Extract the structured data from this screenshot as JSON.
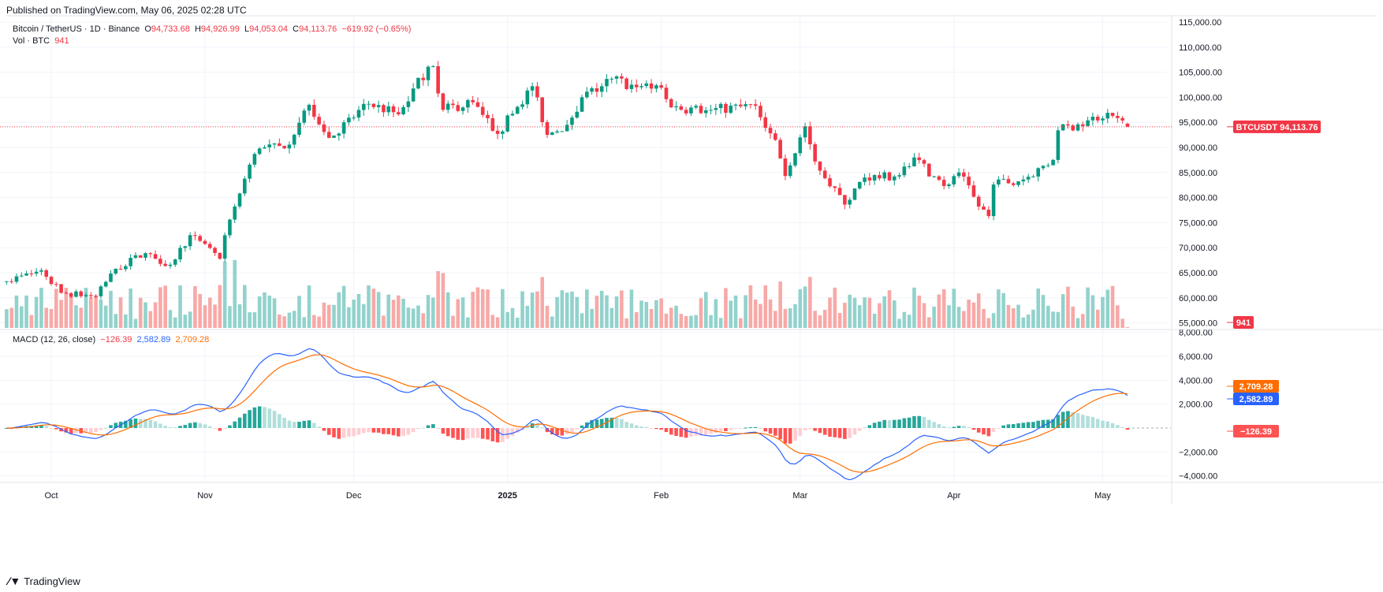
{
  "header": {
    "published": "Published on TradingView.com, May 06, 2025 02:28 UTC"
  },
  "legend": {
    "symbol": "Bitcoin / TetherUS · 1D · Binance",
    "o_label": "O",
    "o": "94,733.68",
    "h_label": "H",
    "h": "94,926.99",
    "l_label": "L",
    "l": "94,053.04",
    "c_label": "C",
    "c": "94,113.76",
    "change": "−619.92 (−0.65%)",
    "vol_label": "Vol · BTC",
    "vol": "941",
    "macd_label": "MACD (12, 26, close)",
    "macd_hist": "−126.39",
    "macd_line": "2,582.89",
    "macd_signal": "2,709.28"
  },
  "price_tag": {
    "symbol": "BTCUSDT",
    "value": "94,113.76"
  },
  "volume_tag": "941",
  "macd_tags": {
    "signal": "2,709.28",
    "macd": "2,582.89",
    "hist": "−126.39"
  },
  "colors": {
    "up": "#089981",
    "down": "#f23645",
    "vol_up": "#92d2cc",
    "vol_down": "#f7a9a7",
    "macd": "#2962ff",
    "signal": "#ff6d00"
  },
  "footer": {
    "brand": "TradingView"
  },
  "chart_data": {
    "type": "candlestick",
    "title": "Bitcoin / TetherUS · 1D · Binance",
    "price_axis": {
      "ticks": [
        "115,000.00",
        "110,000.00",
        "105,000.00",
        "100,000.00",
        "95,000.00",
        "90,000.00",
        "85,000.00",
        "80,000.00",
        "75,000.00",
        "70,000.00",
        "65,000.00",
        "60,000.00",
        "55,000.00"
      ]
    },
    "macd_axis": {
      "ticks": [
        "8,000.00",
        "6,000.00",
        "4,000.00",
        "2,000.00",
        "−2,000.00",
        "−4,000.00"
      ]
    },
    "x_ticks": [
      {
        "label": "Oct",
        "date": "2024-10-01"
      },
      {
        "label": "Nov",
        "date": "2024-11-01"
      },
      {
        "label": "Dec",
        "date": "2024-12-01"
      },
      {
        "label": "2025",
        "date": "2025-01-01"
      },
      {
        "label": "Feb",
        "date": "2025-02-01"
      },
      {
        "label": "Mar",
        "date": "2025-03-01"
      },
      {
        "label": "Apr",
        "date": "2025-04-01"
      },
      {
        "label": "May",
        "date": "2025-05-01"
      }
    ],
    "close_anchors": [
      [
        "2024-09-22",
        63300
      ],
      [
        "2024-09-29",
        65500
      ],
      [
        "2024-10-03",
        61000
      ],
      [
        "2024-10-10",
        60300
      ],
      [
        "2024-10-14",
        65800
      ],
      [
        "2024-10-20",
        68900
      ],
      [
        "2024-10-25",
        66600
      ],
      [
        "2024-10-29",
        72500
      ],
      [
        "2024-11-04",
        67800
      ],
      [
        "2024-11-06",
        75600
      ],
      [
        "2024-11-11",
        88700
      ],
      [
        "2024-11-13",
        90000
      ],
      [
        "2024-11-17",
        89800
      ],
      [
        "2024-11-22",
        98500
      ],
      [
        "2024-11-26",
        91900
      ],
      [
        "2024-12-04",
        98700
      ],
      [
        "2024-12-10",
        96600
      ],
      [
        "2024-12-16",
        106100
      ],
      [
        "2024-12-17",
        106200
      ],
      [
        "2024-12-19",
        97500
      ],
      [
        "2024-12-25",
        99000
      ],
      [
        "2024-12-30",
        92700
      ],
      [
        "2025-01-06",
        102200
      ],
      [
        "2025-01-09",
        92500
      ],
      [
        "2025-01-13",
        94500
      ],
      [
        "2025-01-16",
        100000
      ],
      [
        "2025-01-20",
        102200
      ],
      [
        "2025-01-22",
        103700
      ],
      [
        "2025-01-27",
        102000
      ],
      [
        "2025-01-31",
        102400
      ],
      [
        "2025-02-03",
        98000
      ],
      [
        "2025-02-10",
        97400
      ],
      [
        "2025-02-20",
        98300
      ],
      [
        "2025-02-24",
        91500
      ],
      [
        "2025-02-26",
        84300
      ],
      [
        "2025-03-02",
        94200
      ],
      [
        "2025-03-04",
        87200
      ],
      [
        "2025-03-10",
        78600
      ],
      [
        "2025-03-14",
        84000
      ],
      [
        "2025-03-20",
        84200
      ],
      [
        "2025-03-24",
        88000
      ],
      [
        "2025-03-30",
        82300
      ],
      [
        "2025-04-02",
        85000
      ],
      [
        "2025-04-06",
        78200
      ],
      [
        "2025-04-08",
        76300
      ],
      [
        "2025-04-09",
        82600
      ],
      [
        "2025-04-15",
        83600
      ],
      [
        "2025-04-21",
        87500
      ],
      [
        "2025-04-22",
        93400
      ],
      [
        "2025-04-26",
        94600
      ],
      [
        "2025-05-02",
        96900
      ],
      [
        "2025-05-06",
        94113.76
      ]
    ],
    "last_volume": 941,
    "macd_params": [
      12,
      26
    ]
  }
}
